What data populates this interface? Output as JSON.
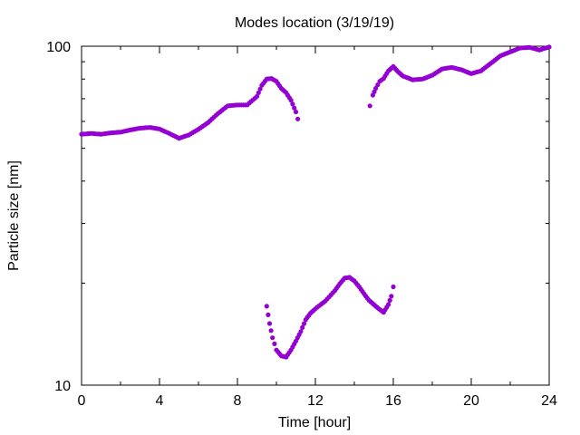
{
  "chart_data": {
    "type": "scatter",
    "title": "Modes location (3/19/19)",
    "xlabel": "Time [hour]",
    "ylabel": "Particle size [nm]",
    "xlim": [
      0,
      24
    ],
    "ylim": [
      10,
      100
    ],
    "yscale": "log",
    "grid": false,
    "x_ticks": [
      0,
      4,
      8,
      12,
      16,
      20,
      24
    ],
    "x_tick_labels": [
      "0",
      "4",
      "8",
      "12",
      "16",
      "20",
      "24"
    ],
    "y_ticks": [
      10,
      100
    ],
    "y_tick_labels": [
      "10",
      "100"
    ],
    "marker_color": "#9400d3",
    "series": [
      {
        "values": [
          [
            0.0,
            55.0
          ],
          [
            0.5,
            55.3
          ],
          [
            1.0,
            55.0
          ],
          [
            1.5,
            55.5
          ],
          [
            2.0,
            55.8
          ],
          [
            2.5,
            56.6
          ],
          [
            3.0,
            57.3
          ],
          [
            3.5,
            57.6
          ],
          [
            4.0,
            57.0
          ],
          [
            4.5,
            55.3
          ],
          [
            5.0,
            53.5
          ],
          [
            5.5,
            54.7
          ],
          [
            6.0,
            56.9
          ],
          [
            6.5,
            59.6
          ],
          [
            7.0,
            63.3
          ],
          [
            7.5,
            66.7
          ],
          [
            8.0,
            67.1
          ],
          [
            8.5,
            67.1
          ],
          [
            9.0,
            71.1
          ],
          [
            9.25,
            76.7
          ],
          [
            9.5,
            80.0
          ],
          [
            9.75,
            80.3
          ],
          [
            10.0,
            78.8
          ],
          [
            10.25,
            75.1
          ],
          [
            10.5,
            72.9
          ],
          [
            10.75,
            69.3
          ],
          [
            11.0,
            64.0
          ],
          [
            11.1,
            61.0
          ]
        ]
      },
      {
        "values": [
          [
            14.8,
            66.7
          ],
          [
            14.95,
            71.7
          ],
          [
            15.1,
            75.1
          ],
          [
            15.3,
            78.8
          ],
          [
            15.5,
            80.3
          ],
          [
            15.75,
            84.6
          ],
          [
            16.0,
            87.1
          ],
          [
            16.25,
            84.0
          ],
          [
            16.5,
            81.6
          ],
          [
            17.0,
            79.6
          ],
          [
            17.5,
            80.0
          ],
          [
            18.0,
            82.1
          ],
          [
            18.5,
            85.7
          ],
          [
            19.0,
            86.6
          ],
          [
            19.5,
            85.2
          ],
          [
            20.0,
            83.0
          ],
          [
            20.5,
            84.6
          ],
          [
            21.0,
            89.0
          ],
          [
            21.5,
            93.7
          ],
          [
            22.0,
            96.2
          ],
          [
            22.5,
            98.8
          ],
          [
            23.0,
            99.2
          ],
          [
            23.5,
            97.5
          ],
          [
            24.0,
            99.5
          ]
        ]
      },
      {
        "values": [
          [
            9.5,
            17.1
          ],
          [
            9.65,
            15.2
          ],
          [
            9.8,
            13.8
          ],
          [
            10.0,
            12.7
          ],
          [
            10.25,
            12.2
          ],
          [
            10.5,
            12.1
          ],
          [
            10.75,
            12.7
          ],
          [
            11.0,
            13.5
          ],
          [
            11.25,
            14.4
          ],
          [
            11.5,
            15.6
          ],
          [
            11.75,
            16.3
          ],
          [
            12.0,
            16.8
          ],
          [
            12.5,
            17.7
          ],
          [
            13.0,
            19.0
          ],
          [
            13.25,
            19.9
          ],
          [
            13.5,
            20.7
          ],
          [
            13.75,
            20.8
          ],
          [
            14.0,
            20.3
          ],
          [
            14.25,
            19.5
          ],
          [
            14.5,
            18.6
          ],
          [
            14.75,
            17.8
          ],
          [
            15.0,
            17.3
          ],
          [
            15.25,
            16.8
          ],
          [
            15.5,
            16.4
          ],
          [
            15.75,
            17.3
          ],
          [
            15.9,
            18.3
          ],
          [
            16.0,
            19.5
          ]
        ]
      }
    ]
  }
}
